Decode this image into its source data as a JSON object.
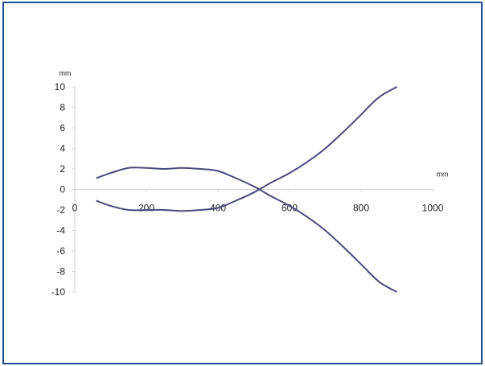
{
  "chart_data": {
    "type": "line",
    "title": "",
    "x_unit": "mm",
    "y_unit": "mm",
    "xlim": [
      0,
      1000
    ],
    "ylim": [
      -10,
      10
    ],
    "x_ticks": [
      0,
      200,
      400,
      600,
      800,
      1000
    ],
    "y_ticks": [
      10,
      8,
      6,
      4,
      2,
      0,
      -2,
      -4,
      -6,
      -8,
      -10
    ],
    "grid": false,
    "legend": "none",
    "line_color": "#4a4a7a",
    "series": [
      {
        "x": [
          60,
          100,
          150,
          200,
          250,
          300,
          350,
          400,
          450,
          500,
          530,
          550,
          600,
          650,
          700,
          750,
          800,
          850,
          900
        ],
        "y": [
          1.1,
          1.6,
          2.1,
          2.1,
          2.0,
          2.1,
          2.0,
          1.8,
          1.1,
          0.3,
          -0.3,
          -0.7,
          -1.6,
          -2.7,
          -4.0,
          -5.6,
          -7.3,
          -9.0,
          -10
        ]
      },
      {
        "x": [
          60,
          100,
          150,
          200,
          250,
          300,
          350,
          400,
          450,
          500,
          530,
          550,
          600,
          650,
          700,
          750,
          800,
          850,
          900
        ],
        "y": [
          -1.1,
          -1.6,
          -2.0,
          -2.0,
          -2.0,
          -2.1,
          -2.0,
          -1.8,
          -1.1,
          -0.3,
          0.3,
          0.7,
          1.6,
          2.7,
          4.0,
          5.6,
          7.3,
          9.0,
          10
        ]
      }
    ]
  }
}
